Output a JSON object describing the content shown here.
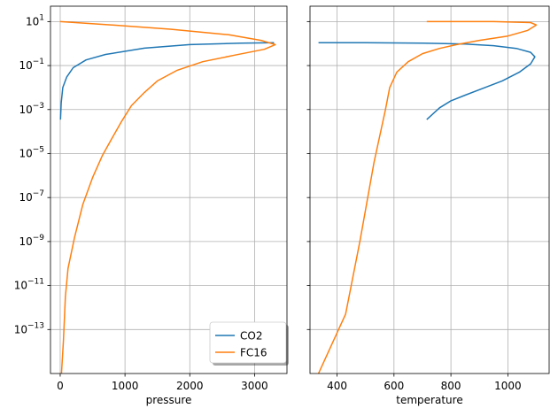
{
  "chart_data": [
    {
      "type": "line",
      "xlabel": "pressure",
      "ylabel": "",
      "yscale": "log",
      "xlim": [
        -150,
        3500
      ],
      "ylim": [
        1e-15,
        50
      ],
      "x_ticks": [
        0,
        1000,
        2000,
        3000
      ],
      "x_tick_labels": [
        "0",
        "1000",
        "2000",
        "3000"
      ],
      "y_ticks": [
        10,
        0.1,
        0.001,
        1e-05,
        1e-07,
        1e-09,
        1e-11,
        1e-13
      ],
      "y_tick_labels": [
        {
          "base": "10",
          "exp": "1"
        },
        {
          "base": "10",
          "exp": "−1"
        },
        {
          "base": "10",
          "exp": "−3"
        },
        {
          "base": "10",
          "exp": "−5"
        },
        {
          "base": "10",
          "exp": "−7"
        },
        {
          "base": "10",
          "exp": "−9"
        },
        {
          "base": "10",
          "exp": "−11"
        },
        {
          "base": "10",
          "exp": "−13"
        }
      ],
      "grid": true,
      "legend": {
        "placement": "lower-right",
        "entries": [
          "CO2",
          "FC16"
        ]
      },
      "series": [
        {
          "name": "CO2",
          "color": "#1f77b4",
          "points": [
            [
              3300,
              1.1
            ],
            [
              2800,
              1.05
            ],
            [
              2000,
              0.9
            ],
            [
              1300,
              0.62
            ],
            [
              700,
              0.32
            ],
            [
              400,
              0.18
            ],
            [
              200,
              0.08
            ],
            [
              100,
              0.03
            ],
            [
              40,
              0.01
            ],
            [
              15,
              0.002
            ],
            [
              5,
              0.00035
            ]
          ]
        },
        {
          "name": "FC16",
          "color": "#ff7f0e",
          "points": [
            [
              0,
              10
            ],
            [
              800,
              7
            ],
            [
              1700,
              4.5
            ],
            [
              2600,
              2.5
            ],
            [
              3100,
              1.4
            ],
            [
              3320,
              0.9
            ],
            [
              3150,
              0.55
            ],
            [
              2700,
              0.3
            ],
            [
              2200,
              0.15
            ],
            [
              1800,
              0.06
            ],
            [
              1500,
              0.02
            ],
            [
              1300,
              0.006
            ],
            [
              1100,
              0.0015
            ],
            [
              950,
              0.0003
            ],
            [
              800,
              5e-05
            ],
            [
              650,
              8e-06
            ],
            [
              500,
              8e-07
            ],
            [
              350,
              5e-08
            ],
            [
              220,
              1.5e-09
            ],
            [
              120,
              6e-11
            ],
            [
              80,
              3e-12
            ],
            [
              50,
              3e-14
            ],
            [
              20,
              1e-15
            ]
          ]
        }
      ]
    },
    {
      "type": "line",
      "xlabel": "temperature",
      "ylabel": "",
      "yscale": "log",
      "xlim": [
        305,
        1145
      ],
      "ylim": [
        1e-15,
        50
      ],
      "x_ticks": [
        400,
        600,
        800,
        1000
      ],
      "x_tick_labels": [
        "400",
        "600",
        "800",
        "1000"
      ],
      "y_ticks": [
        10,
        0.1,
        0.001,
        1e-05,
        1e-07,
        1e-09,
        1e-11,
        1e-13
      ],
      "shared_y": true,
      "grid": true,
      "series": [
        {
          "name": "CO2",
          "color": "#1f77b4",
          "points": [
            [
              335,
              1.1
            ],
            [
              500,
              1.1
            ],
            [
              700,
              1.05
            ],
            [
              850,
              0.95
            ],
            [
              950,
              0.8
            ],
            [
              1030,
              0.6
            ],
            [
              1080,
              0.4
            ],
            [
              1095,
              0.25
            ],
            [
              1080,
              0.12
            ],
            [
              1040,
              0.05
            ],
            [
              980,
              0.02
            ],
            [
              900,
              0.008
            ],
            [
              850,
              0.0045
            ],
            [
              800,
              0.0025
            ],
            [
              760,
              0.0012
            ],
            [
              715,
              0.00035
            ]
          ]
        },
        {
          "name": "FC16",
          "color": "#ff7f0e",
          "points": [
            [
              715,
              10
            ],
            [
              950,
              10
            ],
            [
              1080,
              9
            ],
            [
              1100,
              7
            ],
            [
              1070,
              4
            ],
            [
              1000,
              2.2
            ],
            [
              900,
              1.4
            ],
            [
              820,
              0.9
            ],
            [
              760,
              0.6
            ],
            [
              700,
              0.35
            ],
            [
              650,
              0.15
            ],
            [
              610,
              0.05
            ],
            [
              585,
              0.01
            ],
            [
              570,
              0.001
            ],
            [
              530,
              4e-06
            ],
            [
              480,
              1e-09
            ],
            [
              430,
              5e-13
            ],
            [
              335,
              1e-15
            ]
          ]
        }
      ]
    }
  ]
}
